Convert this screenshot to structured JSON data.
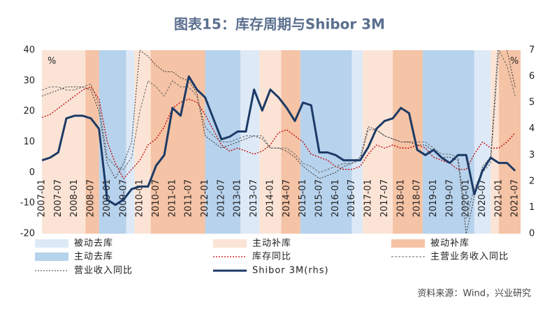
{
  "chart_data": {
    "type": "line",
    "title": "图表15：库存周期与Shibor 3M",
    "y_unit": "%",
    "y2_unit": "%",
    "source": "资料来源：Wind，兴业研究",
    "xlim": [
      "2007-01",
      "2021-09"
    ],
    "xticks": [
      "2007-01",
      "2007-07",
      "2008-01",
      "2008-07",
      "2009-01",
      "2009-07",
      "2010-01",
      "2010-07",
      "2011-01",
      "2011-07",
      "2012-01",
      "2012-07",
      "2013-01",
      "2013-07",
      "2014-01",
      "2014-07",
      "2015-01",
      "2015-07",
      "2016-01",
      "2016-07",
      "2017-01",
      "2017-07",
      "2018-01",
      "2018-07",
      "2019-01",
      "2019-07",
      "2020-01",
      "2020-07",
      "2021-01",
      "2021-07"
    ],
    "ylim": [
      -20,
      40
    ],
    "yticks": [
      -20,
      -10,
      0,
      10,
      20,
      30,
      40
    ],
    "y2lim": [
      0,
      7
    ],
    "y2ticks": [
      0,
      1,
      2,
      3,
      4,
      5,
      6,
      7
    ],
    "phases": [
      {
        "name": "被动去库",
        "color": "#dde9f6"
      },
      {
        "name": "主动补库",
        "color": "#fbe4d6"
      },
      {
        "name": "被动补库",
        "color": "#f5c3a5"
      },
      {
        "name": "主动去库",
        "color": "#b7d2ec"
      }
    ],
    "periods": [
      {
        "phase": 1,
        "start": "2007-01",
        "end": "2008-05"
      },
      {
        "phase": 2,
        "start": "2008-05",
        "end": "2008-10"
      },
      {
        "phase": 3,
        "start": "2008-10",
        "end": "2009-08"
      },
      {
        "phase": 0,
        "start": "2009-08",
        "end": "2009-11"
      },
      {
        "phase": 1,
        "start": "2009-11",
        "end": "2010-05"
      },
      {
        "phase": 2,
        "start": "2010-05",
        "end": "2012-01"
      },
      {
        "phase": 3,
        "start": "2012-01",
        "end": "2013-02"
      },
      {
        "phase": 0,
        "start": "2013-02",
        "end": "2013-09"
      },
      {
        "phase": 1,
        "start": "2013-09",
        "end": "2014-05"
      },
      {
        "phase": 2,
        "start": "2014-05",
        "end": "2014-12"
      },
      {
        "phase": 3,
        "start": "2014-12",
        "end": "2016-07"
      },
      {
        "phase": 0,
        "start": "2016-07",
        "end": "2016-11"
      },
      {
        "phase": 1,
        "start": "2016-11",
        "end": "2017-10"
      },
      {
        "phase": 2,
        "start": "2017-10",
        "end": "2018-09"
      },
      {
        "phase": 3,
        "start": "2018-09",
        "end": "2020-04"
      },
      {
        "phase": 0,
        "start": "2020-04",
        "end": "2020-10"
      },
      {
        "phase": 1,
        "start": "2020-10",
        "end": "2021-01"
      },
      {
        "phase": 2,
        "start": "2021-01",
        "end": "2021-09"
      }
    ],
    "x": [
      "2007-01",
      "2007-04",
      "2007-07",
      "2007-10",
      "2008-01",
      "2008-04",
      "2008-07",
      "2008-10",
      "2009-01",
      "2009-04",
      "2009-07",
      "2009-10",
      "2010-01",
      "2010-04",
      "2010-07",
      "2010-10",
      "2011-01",
      "2011-04",
      "2011-07",
      "2011-10",
      "2012-01",
      "2012-04",
      "2012-07",
      "2012-10",
      "2013-01",
      "2013-04",
      "2013-07",
      "2013-10",
      "2014-01",
      "2014-04",
      "2014-07",
      "2014-10",
      "2015-01",
      "2015-04",
      "2015-07",
      "2015-10",
      "2016-01",
      "2016-04",
      "2016-07",
      "2016-10",
      "2017-01",
      "2017-04",
      "2017-07",
      "2017-10",
      "2018-01",
      "2018-04",
      "2018-07",
      "2018-10",
      "2019-01",
      "2019-04",
      "2019-07",
      "2019-10",
      "2020-01",
      "2020-04",
      "2020-07",
      "2020-10",
      "2021-01",
      "2021-04",
      "2021-07"
    ],
    "series": [
      {
        "name": "库存同比",
        "color": "#c00000",
        "style": "dotted",
        "width": 1.3,
        "values": [
          18,
          19,
          21,
          23,
          25,
          27,
          28,
          24,
          10,
          3,
          -2,
          1,
          4,
          9,
          11,
          15,
          21,
          23,
          24,
          23,
          19,
          14,
          9,
          7,
          8,
          7,
          6,
          7,
          9,
          13,
          14,
          12,
          10,
          6,
          5,
          4,
          2,
          1,
          1,
          2,
          6,
          9,
          8,
          9,
          8,
          8,
          9,
          8,
          5,
          4,
          3,
          1,
          1,
          6,
          10,
          8,
          8,
          10,
          13
        ]
      },
      {
        "name": "主营业务收入同比",
        "color": "#666666",
        "style": "dashed",
        "width": 1,
        "values": [
          27,
          28,
          28,
          27,
          27,
          28,
          29,
          22,
          5,
          2,
          1,
          5,
          20,
          30,
          28,
          25,
          30,
          28,
          28,
          25,
          15,
          12,
          10,
          10,
          11,
          12,
          12,
          12,
          8,
          8,
          8,
          6,
          3,
          2,
          0,
          1,
          2,
          3,
          3,
          4,
          14,
          14,
          12,
          11,
          10,
          10,
          10,
          10,
          8,
          6,
          6,
          5,
          -15,
          -5,
          0,
          3,
          40,
          35,
          25
        ]
      },
      {
        "name": "营业收入同比",
        "color": "#333333",
        "style": "dotted",
        "width": 1,
        "values": [
          25,
          26,
          27,
          28,
          28,
          28,
          27,
          20,
          3,
          -2,
          3,
          10,
          40,
          38,
          35,
          33,
          33,
          31,
          30,
          26,
          12,
          10,
          8,
          9,
          10,
          11,
          12,
          11,
          8,
          8,
          7,
          5,
          2,
          0,
          -2,
          -1,
          0,
          2,
          3,
          5,
          15,
          14,
          12,
          11,
          10,
          10,
          9,
          9,
          7,
          5,
          5,
          4,
          -20,
          -8,
          2,
          5,
          45,
          40,
          28
        ]
      },
      {
        "name": "Shibor 3M(rhs)",
        "color": "#1c3a66",
        "style": "solid",
        "width": 3,
        "axis": "y2",
        "values": [
          2.8,
          2.9,
          3.1,
          4.4,
          4.5,
          4.5,
          4.4,
          4.0,
          1.3,
          1.1,
          1.3,
          1.7,
          1.8,
          1.8,
          2.6,
          3.0,
          4.8,
          4.5,
          6.0,
          5.5,
          5.2,
          4.4,
          3.6,
          3.7,
          3.9,
          3.9,
          5.5,
          4.7,
          5.5,
          5.2,
          4.8,
          4.3,
          5.0,
          4.9,
          3.1,
          3.1,
          3.0,
          2.8,
          2.8,
          2.8,
          3.3,
          4.0,
          4.3,
          4.4,
          4.8,
          4.6,
          3.2,
          3.0,
          3.2,
          2.9,
          2.7,
          3.0,
          3.0,
          1.5,
          2.4,
          2.9,
          2.7,
          2.7,
          2.4
        ]
      }
    ]
  }
}
